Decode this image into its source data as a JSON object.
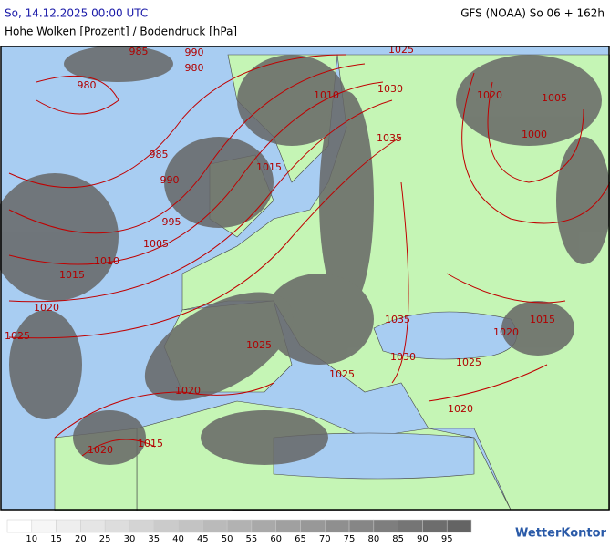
{
  "header": {
    "date": "So, 14.12.2025 00:00 UTC",
    "model": "GFS (NOAA) So 06 + 162h",
    "title": "Hohe Wolken [Prozent] / Bodendruck [hPa]"
  },
  "isobar_labels": [
    985,
    990,
    980,
    980,
    1025,
    1030,
    1010,
    1020,
    1005,
    1000,
    1035,
    985,
    1015,
    990,
    995,
    1005,
    1010,
    1015,
    1020,
    1035,
    1025,
    1015,
    1020,
    1025,
    1030,
    1025,
    1025,
    1020,
    1020,
    1015,
    1020
  ],
  "legend": {
    "labels": [
      10,
      15,
      20,
      25,
      30,
      35,
      40,
      45,
      50,
      55,
      60,
      65,
      70,
      75,
      80,
      85,
      90,
      95
    ]
  },
  "logo": "WetterKontor"
}
